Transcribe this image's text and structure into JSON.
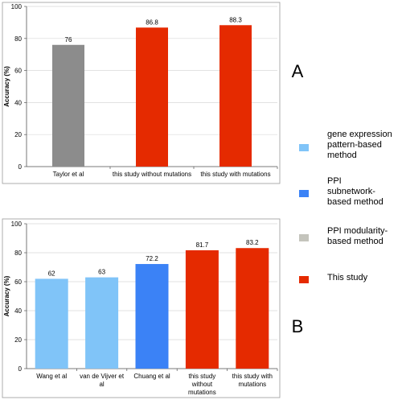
{
  "chart_data": [
    {
      "type": "bar",
      "panel_label": "A",
      "title": "",
      "xlabel": "",
      "ylabel": "Accuracy (%)",
      "ylim": [
        0,
        100
      ],
      "yticks": [
        "0",
        "20",
        "40",
        "60",
        "80",
        "100"
      ],
      "grid": true,
      "categories": [
        {
          "lines": [
            "Taylor et al"
          ]
        },
        {
          "lines": [
            "this study without mutations"
          ]
        },
        {
          "lines": [
            "this study with mutations"
          ]
        }
      ],
      "values": [
        76,
        86.8,
        88.3
      ],
      "value_labels": [
        "76",
        "86.8",
        "88.3"
      ],
      "bar_methods": [
        2,
        3,
        3
      ]
    },
    {
      "type": "bar",
      "panel_label": "B",
      "title": "",
      "xlabel": "",
      "ylabel": "Accuracy (%)",
      "ylim": [
        0,
        100
      ],
      "yticks": [
        "0",
        "20",
        "40",
        "60",
        "80",
        "100"
      ],
      "grid": true,
      "categories": [
        {
          "lines": [
            "Wang et al"
          ]
        },
        {
          "lines": [
            "van de Vijver et",
            "al"
          ]
        },
        {
          "lines": [
            "Chuang et al"
          ]
        },
        {
          "lines": [
            "this study",
            "without",
            "mutations"
          ]
        },
        {
          "lines": [
            "this study with",
            "mutations"
          ]
        }
      ],
      "values": [
        62,
        63,
        72.2,
        81.7,
        83.2
      ],
      "value_labels": [
        "62",
        "63",
        "72.2",
        "81.7",
        "83.2"
      ],
      "bar_methods": [
        0,
        0,
        1,
        3,
        3
      ]
    }
  ],
  "legend": {
    "placement": "right",
    "items": [
      {
        "lines": [
          "gene expression",
          "pattern-based",
          "method"
        ],
        "color": "#80c4f8"
      },
      {
        "lines": [
          "PPI",
          "subnetwork-",
          "based method"
        ],
        "color": "#3b82f6"
      },
      {
        "lines": [
          "PPI modularity-",
          "based method"
        ],
        "color": "#c4c4bc"
      },
      {
        "lines": [
          "This study"
        ],
        "color": "#e52a00"
      }
    ]
  },
  "bar_colors": {
    "Taylor et al": "#8c8c8c"
  }
}
